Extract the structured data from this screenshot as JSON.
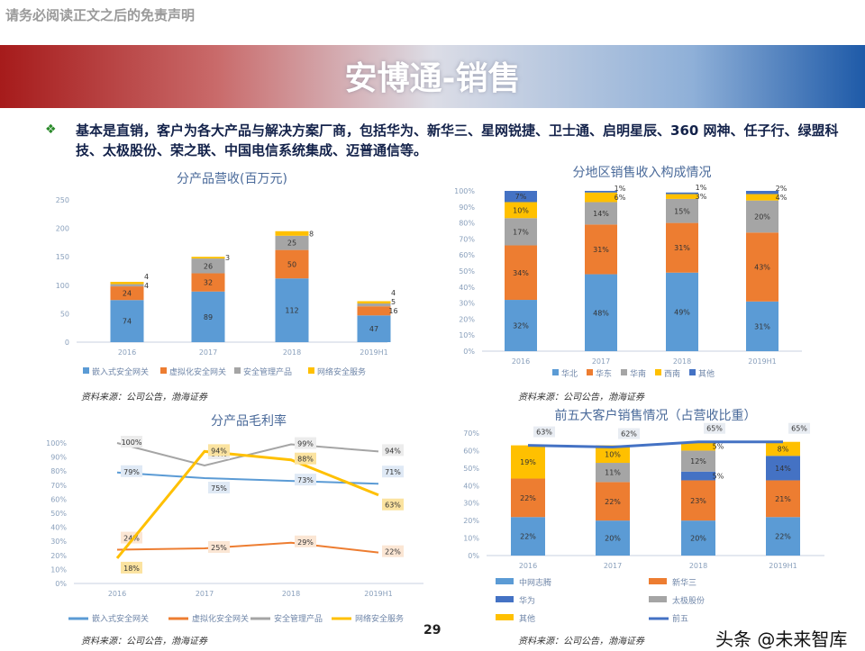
{
  "header": {
    "disclaimer": "请务必阅读正文之后的免责声明",
    "title": "安博通-销售"
  },
  "bullet": {
    "icon": "diamond-bullet-icon",
    "text": "基本是直销，客户为各大产品与解决方案厂商，包括华为、新华三、星网锐捷、卫士通、启明星辰、360 网神、任子行、绿盟科技、太极股份、荣之联、中国电信系统集成、迈普通信等。"
  },
  "source_note": "资料来源：公司公告，渤海证券",
  "page_number": "29",
  "watermark": "头条 @未来智库",
  "chart_data": [
    {
      "type": "bar",
      "stacked": true,
      "title": "分产品营收(百万元)",
      "categories": [
        "2016",
        "2017",
        "2018",
        "2019H1"
      ],
      "ylim": [
        0,
        250
      ],
      "yticks": [
        "0",
        "50",
        "100",
        "150",
        "200",
        "250"
      ],
      "legend": "bottom",
      "series": [
        {
          "name": "嵌入式安全网关",
          "color": "#5b9bd5",
          "values": [
            74,
            89,
            112,
            47
          ]
        },
        {
          "name": "虚拟化安全网关",
          "color": "#ed7d31",
          "values": [
            24,
            32,
            50,
            16
          ]
        },
        {
          "name": "安全管理产品",
          "color": "#a5a5a5",
          "values": [
            4,
            26,
            25,
            5
          ]
        },
        {
          "name": "网络安全服务",
          "color": "#ffc000",
          "values": [
            4,
            3,
            8,
            4
          ]
        }
      ]
    },
    {
      "type": "bar",
      "stacked": true,
      "title": "分地区销售收入构成情况",
      "categories": [
        "2016",
        "2017",
        "2018",
        "2019H1"
      ],
      "ylim": [
        0,
        100
      ],
      "yticks": [
        "0%",
        "10%",
        "20%",
        "30%",
        "40%",
        "50%",
        "60%",
        "70%",
        "80%",
        "90%",
        "100%"
      ],
      "legend": "bottom",
      "series": [
        {
          "name": "华北",
          "color": "#5b9bd5",
          "values": [
            32,
            48,
            49,
            31
          ]
        },
        {
          "name": "华东",
          "color": "#ed7d31",
          "values": [
            34,
            31,
            31,
            43
          ]
        },
        {
          "name": "华南",
          "color": "#a5a5a5",
          "values": [
            17,
            14,
            15,
            20
          ]
        },
        {
          "name": "西南",
          "color": "#ffc000",
          "values": [
            10,
            6,
            3,
            4
          ]
        },
        {
          "name": "其他",
          "color": "#4472c4",
          "values": [
            7,
            1,
            1,
            2
          ]
        }
      ]
    },
    {
      "type": "line",
      "title": "分产品毛利率",
      "categories": [
        "2016",
        "2017",
        "2018",
        "2019H1"
      ],
      "ylim": [
        0,
        100
      ],
      "yticks": [
        "0%",
        "10%",
        "20%",
        "30%",
        "40%",
        "50%",
        "60%",
        "70%",
        "80%",
        "90%",
        "100%"
      ],
      "legend": "bottom",
      "series": [
        {
          "name": "嵌入式安全网关",
          "color": "#5b9bd5",
          "values": [
            79,
            75,
            73,
            71
          ]
        },
        {
          "name": "虚拟化安全网关",
          "color": "#ed7d31",
          "values": [
            24,
            25,
            29,
            22
          ]
        },
        {
          "name": "安全管理产品",
          "color": "#a5a5a5",
          "values": [
            100,
            84,
            99,
            94
          ]
        },
        {
          "name": "网络安全服务",
          "color": "#ffc000",
          "values": [
            18,
            94,
            88,
            63
          ]
        }
      ]
    },
    {
      "type": "bar",
      "stacked": true,
      "title": "前五大客户销售情况（占营收比重）",
      "categories": [
        "2016",
        "2017",
        "2018",
        "2019H1"
      ],
      "ylim": [
        0,
        70
      ],
      "yticks": [
        "0%",
        "10%",
        "20%",
        "30%",
        "40%",
        "50%",
        "60%",
        "70%"
      ],
      "legend": "bottom",
      "series": [
        {
          "name": "中网志腾",
          "color": "#5b9bd5",
          "values": [
            22,
            20,
            20,
            22
          ]
        },
        {
          "name": "新华三",
          "color": "#ed7d31",
          "values": [
            22,
            22,
            23,
            21
          ]
        },
        {
          "name": "华为",
          "color": "#4472c4",
          "values": [
            0,
            0,
            5,
            14
          ]
        },
        {
          "name": "太极股份",
          "color": "#a5a5a5",
          "values": [
            0,
            11,
            12,
            0
          ]
        },
        {
          "name": "其他",
          "color": "#ffc000",
          "values": [
            19,
            10,
            5,
            8
          ]
        }
      ],
      "line": {
        "name": "前五",
        "color": "#4472c4",
        "values": [
          63,
          62,
          65,
          65
        ]
      }
    }
  ]
}
